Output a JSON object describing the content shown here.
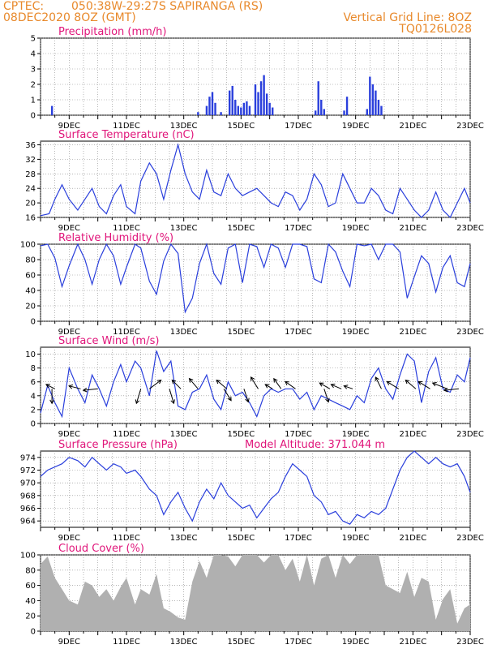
{
  "header": {
    "source": "CPTEC:",
    "location": "050:38W-29:27S  SAPIRANGA (RS)",
    "init_time": "08DEC2020 8OZ (GMT)",
    "grid_note": "Vertical Grid Line: 8OZ",
    "code": "TQ0126L028"
  },
  "colors": {
    "header": "#e8892b",
    "title": "#e0157a",
    "line": "#2a3fdc",
    "cloud": "#b0b0b0",
    "vector": "#000000"
  },
  "x_labels": [
    "9DEC",
    "11DEC",
    "13DEC",
    "15DEC",
    "17DEC",
    "19DEC",
    "21DEC",
    "23DEC"
  ],
  "chart_data": [
    {
      "type": "bar",
      "title": "Precipitation (mm/h)",
      "xlim": [
        8.0,
        23.0
      ],
      "ylim": [
        0,
        5
      ],
      "yticks": [
        0,
        1,
        2,
        3,
        4,
        5
      ],
      "x": [
        8.4,
        13.5,
        13.8,
        13.9,
        14.0,
        14.1,
        14.3,
        14.6,
        14.7,
        14.8,
        14.9,
        15.0,
        15.1,
        15.2,
        15.3,
        15.5,
        15.6,
        15.7,
        15.8,
        15.9,
        16.0,
        16.1,
        17.6,
        17.7,
        17.8,
        17.9,
        18.6,
        18.7,
        19.4,
        19.5,
        19.6,
        19.7,
        19.8,
        19.9
      ],
      "values": [
        0.6,
        0.2,
        0.6,
        1.2,
        1.5,
        0.8,
        0.2,
        1.6,
        1.9,
        1.0,
        0.6,
        0.5,
        0.8,
        0.9,
        0.6,
        2.0,
        1.5,
        2.2,
        2.6,
        1.4,
        0.8,
        0.5,
        0.3,
        2.2,
        1.0,
        0.4,
        0.3,
        1.2,
        0.4,
        2.5,
        2.0,
        1.6,
        1.0,
        0.6
      ]
    },
    {
      "type": "line",
      "title": "Surface Temperature (nC)",
      "xlim": [
        8.0,
        23.0
      ],
      "ylim": [
        16,
        37
      ],
      "yticks": [
        16,
        20,
        24,
        28,
        32,
        36
      ],
      "x": [
        8.0,
        8.3,
        8.5,
        8.75,
        9.0,
        9.3,
        9.55,
        9.8,
        10.05,
        10.3,
        10.55,
        10.8,
        11.0,
        11.3,
        11.5,
        11.8,
        12.05,
        12.3,
        12.55,
        12.8,
        13.05,
        13.3,
        13.55,
        13.8,
        14.05,
        14.3,
        14.55,
        14.8,
        15.05,
        15.3,
        15.55,
        15.8,
        16.05,
        16.3,
        16.55,
        16.8,
        17.05,
        17.3,
        17.55,
        17.8,
        18.05,
        18.3,
        18.55,
        18.8,
        19.05,
        19.3,
        19.55,
        19.8,
        20.05,
        20.3,
        20.55,
        20.8,
        21.05,
        21.3,
        21.55,
        21.8,
        22.05,
        22.3,
        22.55,
        22.8,
        23.0
      ],
      "values": [
        16.5,
        17,
        21,
        25,
        21,
        18,
        21,
        24,
        19,
        17,
        22,
        25,
        19,
        17,
        26,
        31,
        28,
        21,
        29,
        36,
        28,
        23,
        21,
        29,
        23,
        22,
        28,
        24,
        22,
        23,
        24,
        22,
        20,
        19,
        23,
        22,
        18,
        21,
        28,
        25,
        19,
        20,
        28,
        24,
        20,
        20,
        24,
        22,
        18,
        17,
        24,
        21,
        18,
        16,
        18,
        23,
        18,
        16,
        20,
        24,
        20
      ]
    },
    {
      "type": "line",
      "title": "Relative Humidity (%)",
      "xlim": [
        8.0,
        23.0
      ],
      "ylim": [
        0,
        100
      ],
      "yticks": [
        0,
        20,
        40,
        60,
        80,
        100
      ],
      "x": [
        8.0,
        8.25,
        8.5,
        8.75,
        9.0,
        9.3,
        9.55,
        9.8,
        10.05,
        10.3,
        10.55,
        10.8,
        11.0,
        11.3,
        11.5,
        11.8,
        12.05,
        12.3,
        12.55,
        12.8,
        13.05,
        13.3,
        13.55,
        13.8,
        14.05,
        14.3,
        14.55,
        14.8,
        15.05,
        15.3,
        15.55,
        15.8,
        16.05,
        16.3,
        16.55,
        16.8,
        17.05,
        17.3,
        17.55,
        17.8,
        18.05,
        18.3,
        18.55,
        18.8,
        19.05,
        19.3,
        19.55,
        19.8,
        20.05,
        20.3,
        20.55,
        20.8,
        21.05,
        21.3,
        21.55,
        21.8,
        22.05,
        22.3,
        22.55,
        22.8,
        23.0
      ],
      "values": [
        98,
        100,
        82,
        45,
        72,
        100,
        80,
        48,
        80,
        100,
        85,
        48,
        70,
        100,
        95,
        52,
        35,
        78,
        100,
        88,
        12,
        30,
        75,
        100,
        62,
        48,
        95,
        100,
        50,
        100,
        97,
        70,
        100,
        95,
        70,
        100,
        100,
        97,
        55,
        50,
        100,
        90,
        65,
        45,
        100,
        98,
        100,
        80,
        100,
        100,
        90,
        30,
        58,
        85,
        75,
        38,
        70,
        85,
        50,
        45,
        75
      ]
    },
    {
      "type": "line",
      "title": "Surface Wind (m/s)",
      "xlim": [
        8.0,
        23.0
      ],
      "ylim": [
        0,
        11
      ],
      "yticks": [
        0,
        2,
        4,
        6,
        8,
        10
      ],
      "x": [
        8.0,
        8.25,
        8.5,
        8.75,
        9.0,
        9.3,
        9.55,
        9.8,
        10.05,
        10.3,
        10.55,
        10.8,
        11.0,
        11.3,
        11.5,
        11.8,
        12.05,
        12.3,
        12.55,
        12.8,
        13.05,
        13.3,
        13.55,
        13.8,
        14.05,
        14.3,
        14.55,
        14.8,
        15.05,
        15.3,
        15.55,
        15.8,
        16.05,
        16.3,
        16.55,
        16.8,
        17.05,
        17.3,
        17.55,
        17.8,
        18.05,
        18.3,
        18.55,
        18.8,
        19.05,
        19.3,
        19.55,
        19.8,
        20.05,
        20.3,
        20.55,
        20.8,
        21.05,
        21.3,
        21.55,
        21.8,
        22.05,
        22.3,
        22.55,
        22.8,
        23.0
      ],
      "values": [
        1.5,
        5.5,
        3.0,
        1.0,
        8.0,
        5.0,
        3.0,
        7.0,
        5.0,
        2.5,
        6.0,
        8.5,
        6.0,
        9.0,
        8.0,
        4.0,
        10.5,
        7.5,
        9.0,
        2.5,
        2.0,
        4.5,
        5.0,
        7.0,
        3.5,
        2.0,
        6.0,
        4.0,
        4.5,
        3.0,
        1.0,
        4.0,
        5.0,
        4.5,
        5.0,
        5.0,
        3.5,
        4.5,
        2.0,
        4.0,
        3.5,
        3.0,
        2.5,
        2.0,
        4.0,
        3.0,
        6.5,
        8.0,
        5.0,
        3.5,
        7.0,
        10.0,
        9.0,
        3.0,
        7.5,
        9.5,
        5.0,
        4.5,
        7.0,
        6.0,
        9.5
      ],
      "arrows": [
        {
          "x": 8.4,
          "u": 0.0,
          "v": -1.0
        },
        {
          "x": 8.5,
          "u": -0.6,
          "v": 0.3
        },
        {
          "x": 9.4,
          "u": -0.8,
          "v": 0.2
        },
        {
          "x": 10.0,
          "u": -1.0,
          "v": -0.1
        },
        {
          "x": 11.5,
          "u": -0.3,
          "v": -1.0
        },
        {
          "x": 11.8,
          "u": 0.8,
          "v": 0.6
        },
        {
          "x": 12.5,
          "u": 0.3,
          "v": -1.0
        },
        {
          "x": 12.9,
          "u": -0.6,
          "v": 0.6
        },
        {
          "x": 13.5,
          "u": -0.6,
          "v": 0.7
        },
        {
          "x": 14.4,
          "u": 0.5,
          "v": -0.8
        },
        {
          "x": 14.5,
          "u": -0.7,
          "v": 0.6
        },
        {
          "x": 15.1,
          "u": 0.3,
          "v": -0.9
        },
        {
          "x": 15.6,
          "u": -0.5,
          "v": 0.8
        },
        {
          "x": 16.1,
          "u": -0.5,
          "v": 0.3
        },
        {
          "x": 16.4,
          "u": -0.5,
          "v": 0.7
        },
        {
          "x": 16.9,
          "u": -0.7,
          "v": 0.5
        },
        {
          "x": 17.9,
          "u": 0.3,
          "v": -0.9
        },
        {
          "x": 18.1,
          "u": -0.7,
          "v": 0.4
        },
        {
          "x": 18.5,
          "u": -0.7,
          "v": 0.3
        },
        {
          "x": 18.9,
          "u": -0.6,
          "v": 0.2
        },
        {
          "x": 19.9,
          "u": -0.4,
          "v": 0.8
        },
        {
          "x": 20.5,
          "u": -0.8,
          "v": 0.5
        },
        {
          "x": 21.1,
          "u": -0.7,
          "v": 0.6
        },
        {
          "x": 21.6,
          "u": -0.8,
          "v": 0.5
        },
        {
          "x": 22.2,
          "u": -1.0,
          "v": 0.4
        },
        {
          "x": 22.6,
          "u": -1.0,
          "v": -0.1
        }
      ]
    },
    {
      "type": "line",
      "title": "Surface Pressure (hPa)",
      "subtitle": "Model Altitude: 371.044 m",
      "xlim": [
        8.0,
        23.0
      ],
      "ylim": [
        963,
        975
      ],
      "yticks": [
        964,
        966,
        968,
        970,
        972,
        974
      ],
      "x": [
        8.0,
        8.25,
        8.5,
        8.75,
        9.0,
        9.3,
        9.55,
        9.8,
        10.05,
        10.3,
        10.55,
        10.8,
        11.0,
        11.3,
        11.5,
        11.8,
        12.05,
        12.3,
        12.55,
        12.8,
        13.05,
        13.3,
        13.55,
        13.8,
        14.05,
        14.3,
        14.55,
        14.8,
        15.05,
        15.3,
        15.55,
        15.8,
        16.05,
        16.3,
        16.55,
        16.8,
        17.05,
        17.3,
        17.55,
        17.8,
        18.05,
        18.3,
        18.55,
        18.8,
        19.05,
        19.3,
        19.55,
        19.8,
        20.05,
        20.3,
        20.55,
        20.8,
        21.05,
        21.3,
        21.55,
        21.8,
        22.05,
        22.3,
        22.55,
        22.8,
        23.0
      ],
      "values": [
        971,
        972,
        972.5,
        973,
        974,
        973.5,
        972.5,
        974,
        973,
        972,
        973,
        972.5,
        971.5,
        972,
        971,
        969,
        968,
        965,
        967,
        968.5,
        966,
        964,
        967,
        969,
        967.5,
        970,
        968,
        967,
        966,
        966.5,
        964.5,
        966,
        967.5,
        968.5,
        971,
        973,
        972,
        971,
        968,
        967,
        965,
        965.5,
        964,
        963.5,
        965,
        964.5,
        965.5,
        965,
        966,
        969,
        972,
        974,
        975,
        974,
        973,
        974,
        973,
        972.5,
        973,
        971,
        968.5
      ]
    },
    {
      "type": "area",
      "title": "Cloud Cover (%)",
      "xlim": [
        8.0,
        23.0
      ],
      "ylim": [
        0,
        100
      ],
      "yticks": [
        0,
        20,
        40,
        60,
        80,
        100
      ],
      "x": [
        8.0,
        8.25,
        8.5,
        8.75,
        9.0,
        9.3,
        9.55,
        9.8,
        10.05,
        10.3,
        10.55,
        10.8,
        11.0,
        11.3,
        11.5,
        11.8,
        12.05,
        12.3,
        12.55,
        12.8,
        13.05,
        13.3,
        13.55,
        13.8,
        14.05,
        14.3,
        14.55,
        14.8,
        15.05,
        15.3,
        15.55,
        15.8,
        16.05,
        16.3,
        16.55,
        16.8,
        17.05,
        17.3,
        17.55,
        17.8,
        18.05,
        18.3,
        18.55,
        18.8,
        19.05,
        19.3,
        19.55,
        19.8,
        20.05,
        20.3,
        20.55,
        20.8,
        21.05,
        21.3,
        21.55,
        21.8,
        22.05,
        22.3,
        22.55,
        22.8,
        23.0
      ],
      "values": [
        88,
        98,
        70,
        55,
        40,
        35,
        65,
        60,
        45,
        55,
        40,
        58,
        70,
        35,
        55,
        48,
        75,
        30,
        25,
        18,
        15,
        65,
        92,
        70,
        100,
        100,
        98,
        85,
        100,
        100,
        100,
        90,
        100,
        100,
        80,
        95,
        65,
        100,
        60,
        95,
        100,
        70,
        100,
        88,
        100,
        100,
        100,
        100,
        60,
        55,
        50,
        78,
        45,
        70,
        65,
        15,
        42,
        55,
        10,
        30,
        35
      ]
    }
  ]
}
